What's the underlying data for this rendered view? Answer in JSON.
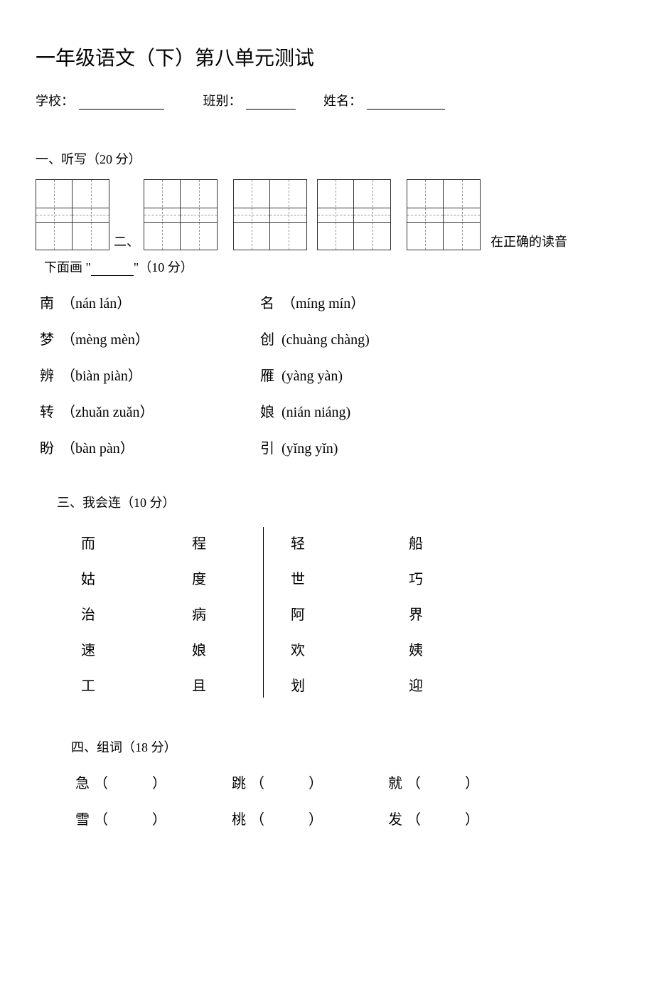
{
  "title": "一年级语文（下）第八单元测试",
  "info": {
    "school_label": "学校：",
    "school_underline_width": 120,
    "class_label": "班别：",
    "class_underline_width": 70,
    "name_label": "姓名：",
    "name_underline_width": 110,
    "gap1": 46,
    "gap2": 30
  },
  "section1": {
    "header": "一、听写（20 分）",
    "grid_gaps": [
      56,
      22,
      14,
      22
    ],
    "inline_two": "二、",
    "trailing": "在正确的读音"
  },
  "section2": {
    "cont_line_prefix": "下面画 \"",
    "cont_line_suffix": "\"（10 分）",
    "rows": [
      {
        "l_char": "南",
        "l_opts": "（nán   lán）",
        "r_char": "名",
        "r_opts": "（míng   mín）"
      },
      {
        "l_char": "梦",
        "l_opts": "（mèng   mèn）",
        "r_char": "创",
        "r_opts": "(chuàng   chàng)"
      },
      {
        "l_char": "辨",
        "l_opts": "（biàn   piàn）",
        "r_char": "雁",
        "r_opts": "(yàng   yàn)"
      },
      {
        "l_char": "转",
        "l_opts": "（zhuǎn   zuǎn）",
        "r_char": "娘",
        "r_opts": "(nián   niáng)"
      },
      {
        "l_char": "盼",
        "l_opts": "（bàn   pàn）",
        "r_char": "引",
        "r_opts": "(yǐng   yǐn)"
      }
    ]
  },
  "section3": {
    "header": "三、我会连（10 分）",
    "left_col1": [
      "而",
      "姑",
      "治",
      "速",
      "工"
    ],
    "left_col2": [
      "程",
      "度",
      "病",
      "娘",
      "且"
    ],
    "right_col1": [
      "轻",
      "世",
      "阿",
      "欢",
      "划"
    ],
    "right_col2": [
      "船",
      "巧",
      "界",
      "姨",
      "迎"
    ]
  },
  "section4": {
    "header": "四、组词（18 分）",
    "rows": [
      [
        "急",
        "跳",
        "就"
      ],
      [
        "雪",
        "桃",
        "发"
      ]
    ]
  },
  "colors": {
    "text": "#000000",
    "background": "#ffffff",
    "grid_border": "#333333",
    "grid_dash": "#999999"
  }
}
